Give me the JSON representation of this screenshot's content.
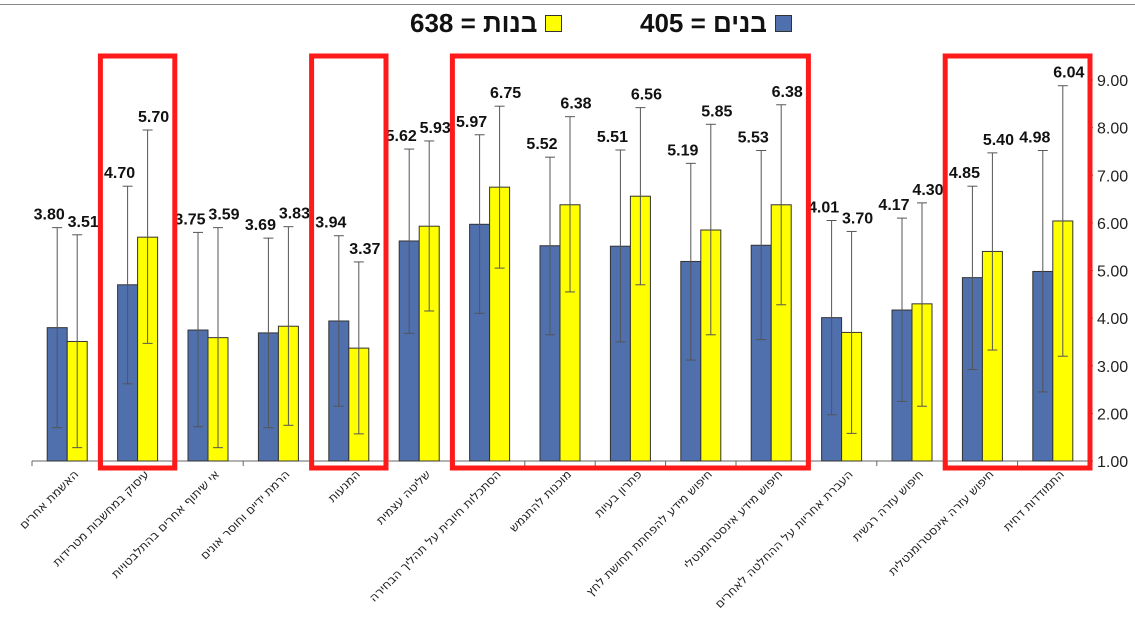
{
  "chart_data": {
    "type": "bar",
    "categories": [
      "האשמת אחרים",
      "עיסוק במחשבות מטרידות",
      "אי שיתוף אחרים בהתלבטויות",
      "הרמת ידיים וחוסר אונים",
      "המנעות",
      "שליטה עצמית",
      "הסתכלות חיובית על תהליך הבחירה",
      "מוכנות להתגמש",
      "פתרון בעיות",
      "חיפוש מידע להפחתת תחושת לחץ",
      "חיפוש מידע אינסטרומנטלי",
      "העברת אחריות על ההחלטה לאחרים",
      "חיפוש עזרה רגשית",
      "חיפוש עזרה אינסטרומנטלית",
      "התמודדות דחית"
    ],
    "series": [
      {
        "name": "בנים = 405",
        "color": "#4f6fad",
        "values": [
          3.8,
          4.7,
          3.75,
          3.69,
          3.94,
          5.62,
          5.97,
          5.52,
          5.51,
          5.19,
          5.53,
          4.01,
          4.17,
          4.85,
          4.98
        ],
        "labels": [
          "3.80",
          "4.70",
          "3.75",
          "3.69",
          "3.94",
          "5.62",
          "5.97",
          "5.52",
          "5.51",
          "5.19",
          "5.53",
          "4.01",
          "4.17",
          "4.85",
          "4.98"
        ],
        "err_low": [
          1.7,
          2.62,
          1.72,
          1.7,
          2.15,
          3.68,
          4.1,
          3.65,
          3.5,
          3.12,
          3.55,
          1.97,
          2.25,
          2.92,
          2.45
        ],
        "err_high": [
          5.9,
          6.77,
          5.8,
          5.68,
          5.73,
          7.55,
          7.85,
          7.38,
          7.53,
          7.25,
          7.52,
          6.05,
          6.1,
          6.77,
          7.52
        ]
      },
      {
        "name": "בנות = 638",
        "color": "#ffff00",
        "values": [
          3.51,
          5.7,
          3.59,
          3.83,
          3.37,
          5.93,
          6.75,
          6.38,
          6.56,
          5.85,
          6.38,
          3.7,
          4.3,
          5.4,
          6.04
        ],
        "labels": [
          "3.51",
          "5.70",
          "3.59",
          "3.83",
          "3.37",
          "5.93",
          "6.75",
          "6.38",
          "6.56",
          "5.85",
          "6.38",
          "3.70",
          "4.30",
          "5.40",
          "6.04"
        ],
        "err_low": [
          1.28,
          3.47,
          1.28,
          1.75,
          1.57,
          4.15,
          5.05,
          4.55,
          4.7,
          3.65,
          4.28,
          1.58,
          2.15,
          3.33,
          3.2
        ],
        "err_high": [
          5.75,
          7.95,
          5.9,
          5.92,
          5.18,
          7.72,
          8.45,
          8.23,
          8.42,
          8.07,
          8.48,
          5.82,
          6.42,
          7.47,
          8.88
        ]
      }
    ],
    "ylim": [
      1,
      9.4
    ],
    "yticks": [
      "1.00",
      "2.00",
      "3.00",
      "4.00",
      "5.00",
      "6.00",
      "7.00",
      "8.00",
      "9.00"
    ],
    "ytick_values": [
      1,
      2,
      3,
      4,
      5,
      6,
      7,
      8,
      9
    ],
    "y_axis_side": "right",
    "error_bars": true,
    "highlight_groups": [
      [
        1,
        1
      ],
      [
        4,
        4
      ],
      [
        6,
        10
      ],
      [
        13,
        14
      ]
    ],
    "highlight_color": "#ff1a1a",
    "xlabel": "",
    "ylabel": "",
    "title": ""
  },
  "legend": {
    "boys_label": "בנים = 405",
    "girls_label": "בנות = 638",
    "boys_color": "#4f6fad",
    "girls_color": "#ffff00"
  }
}
